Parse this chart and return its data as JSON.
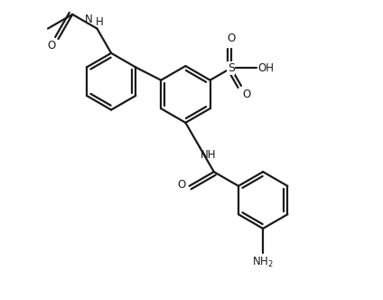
{
  "bg": "#ffffff",
  "lc": "#1a1a1a",
  "lw": 1.6,
  "fs": 8.5,
  "R": 0.3,
  "dbo": 0.038,
  "shorten": 0.09,
  "xlim": [
    -0.9,
    3.1
  ],
  "ylim": [
    -1.7,
    1.25
  ]
}
